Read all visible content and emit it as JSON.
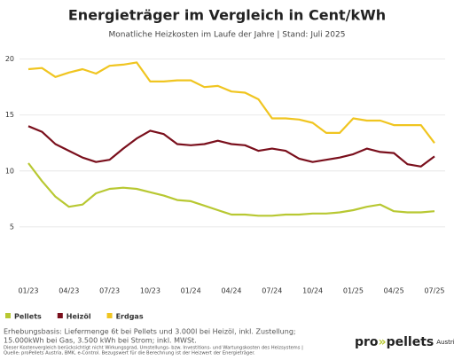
{
  "chart_data": {
    "type": "line",
    "title": "Energieträger im Vergleich in Cent/kWh",
    "subtitle": "Monatliche Heizkosten im Laufe der Jahre | Stand: Juli 2025",
    "categories": [
      "01/23",
      null,
      null,
      "04/23",
      null,
      null,
      "07/23",
      null,
      null,
      "10/23",
      null,
      null,
      "01/24",
      null,
      null,
      "04/24",
      null,
      null,
      "07/24",
      null,
      null,
      "10/24",
      null,
      null,
      "01/25",
      null,
      null,
      "04/25",
      null,
      null,
      "07/25"
    ],
    "series": [
      {
        "name": "Pellets",
        "color": "#b8c832",
        "values": [
          10.7,
          9.1,
          7.7,
          6.8,
          7.0,
          8.0,
          8.4,
          8.5,
          8.4,
          8.1,
          7.8,
          7.4,
          7.3,
          6.9,
          6.5,
          6.1,
          6.1,
          6.0,
          6.0,
          6.1,
          6.1,
          6.2,
          6.2,
          6.3,
          6.5,
          6.8,
          7.0,
          6.4,
          6.3,
          6.3,
          6.4
        ]
      },
      {
        "name": "Heizöl",
        "color": "#7a0f1c",
        "values": [
          14.0,
          13.5,
          12.4,
          11.8,
          11.2,
          10.8,
          11.0,
          12.0,
          12.9,
          13.6,
          13.3,
          12.4,
          12.3,
          12.4,
          12.7,
          12.4,
          12.3,
          11.8,
          12.0,
          11.8,
          11.1,
          10.8,
          11.0,
          11.2,
          11.5,
          12.0,
          11.7,
          11.6,
          10.6,
          10.4,
          11.3
        ]
      },
      {
        "name": "Erdgas",
        "color": "#f0c520",
        "values": [
          19.1,
          19.2,
          18.4,
          18.8,
          19.1,
          18.7,
          19.4,
          19.5,
          19.7,
          18.0,
          18.0,
          18.1,
          18.1,
          17.5,
          17.6,
          17.1,
          17.0,
          16.4,
          14.7,
          14.7,
          14.6,
          14.3,
          13.4,
          13.4,
          14.7,
          14.5,
          14.5,
          14.1,
          14.1,
          14.1,
          12.5
        ]
      }
    ],
    "ylim": [
      0,
      21
    ],
    "yticks": [
      5,
      10,
      15,
      20
    ],
    "grid": true,
    "footnotes": [
      "Erhebungsbasis: Liefermenge 6t bei Pellets und 3.000l bei Heizöl, inkl. Zustellung;",
      "15.000kWh bei Gas, 3.500 kWh bei Strom; inkl. MWSt.",
      "Dieser Kostenvergleich berücksichtigt nicht Wirkungsgrad, Umstellungs- bzw. Investitions- und Wartungskosten des Heizsystems |",
      "Quelle: proPellets Austria, BMK, e-Control. Bezugswert für die Berechnung ist der Heizwert der Energieträger."
    ],
    "logo": {
      "part1": "pro",
      "part2": "pellets",
      "suffix": "Austria"
    }
  }
}
